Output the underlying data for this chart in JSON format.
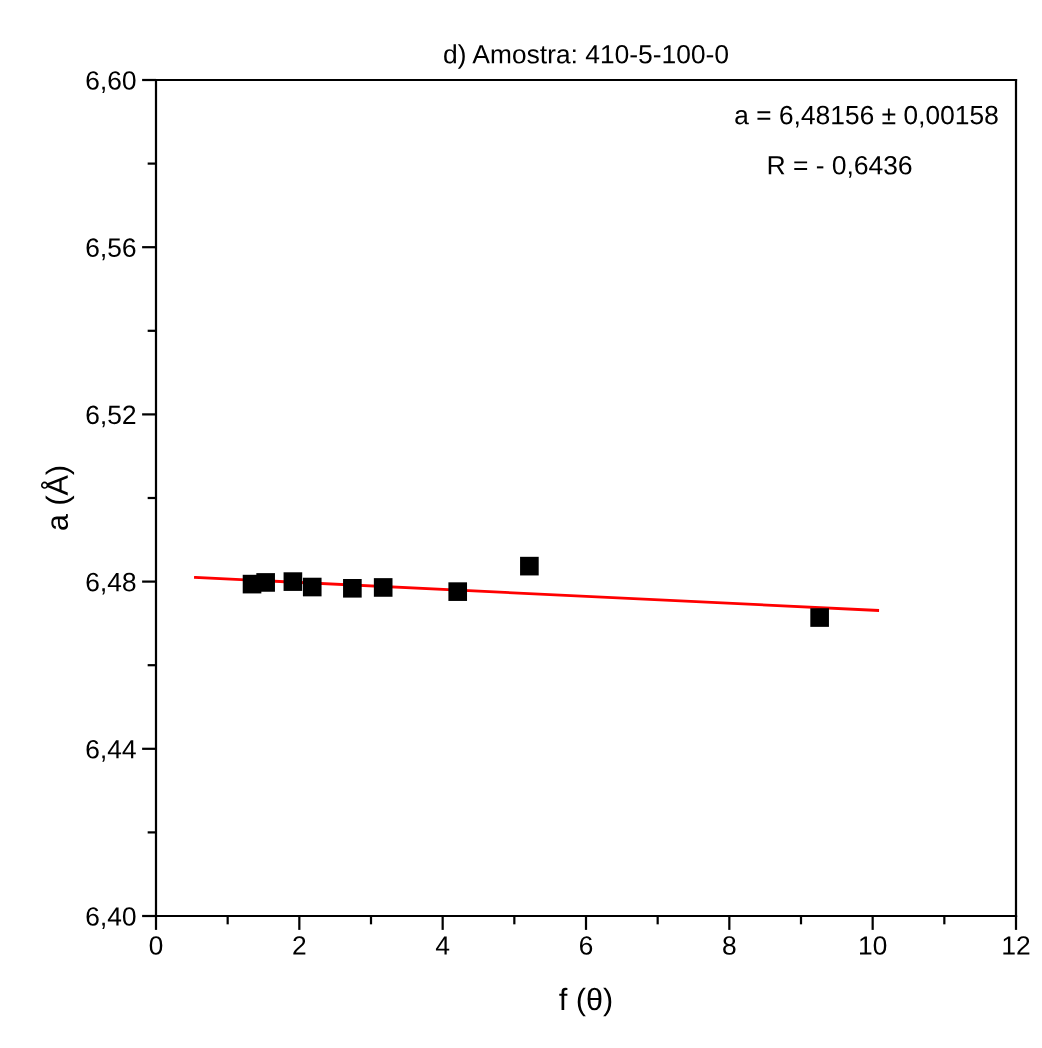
{
  "chart_data": {
    "type": "scatter",
    "title": "d) Amostra: 410-5-100-0",
    "xlabel": "f (θ)",
    "ylabel": "a (Å)",
    "annotations": [
      "a = 6,48156 ± 0,00158",
      "R = - 0,6436"
    ],
    "series": [
      {
        "color": "#000000",
        "marker": "square",
        "x": [
          1.34,
          1.53,
          1.91,
          2.18,
          2.74,
          3.17,
          4.21,
          5.21,
          9.26
        ],
        "values": [
          6.4794,
          6.4798,
          6.48,
          6.4787,
          6.4784,
          6.4786,
          6.4776,
          6.4837,
          6.4714
        ]
      },
      {
        "type": "line",
        "color": "#ff0000",
        "marker": "none",
        "line_style": "solid",
        "x": [
          0.55,
          10.07
        ],
        "values": [
          6.481,
          6.4731
        ]
      }
    ],
    "xlim": [
      0,
      12
    ],
    "ylim": [
      6.4,
      6.6
    ],
    "xticks": [
      {
        "value": 0,
        "label": "0"
      },
      {
        "value": 1,
        "label": null
      },
      {
        "value": 2,
        "label": "2"
      },
      {
        "value": 3,
        "label": null
      },
      {
        "value": 4,
        "label": "4"
      },
      {
        "value": 5,
        "label": null
      },
      {
        "value": 6,
        "label": "6"
      },
      {
        "value": 7,
        "label": null
      },
      {
        "value": 8,
        "label": "8"
      },
      {
        "value": 9,
        "label": null
      },
      {
        "value": 10,
        "label": "10"
      },
      {
        "value": 11,
        "label": null
      },
      {
        "value": 12,
        "label": "12"
      }
    ],
    "yticks": [
      {
        "value": 6.4,
        "label": "6,40"
      },
      {
        "value": 6.42,
        "label": null
      },
      {
        "value": 6.44,
        "label": "6,44"
      },
      {
        "value": 6.46,
        "label": null
      },
      {
        "value": 6.48,
        "label": "6,48"
      },
      {
        "value": 6.5,
        "label": null
      },
      {
        "value": 6.52,
        "label": "6,52"
      },
      {
        "value": 6.54,
        "label": null
      },
      {
        "value": 6.56,
        "label": "6,56"
      },
      {
        "value": 6.58,
        "label": null
      },
      {
        "value": 6.6,
        "label": "6,60"
      }
    ],
    "grid": false,
    "legend": false
  }
}
